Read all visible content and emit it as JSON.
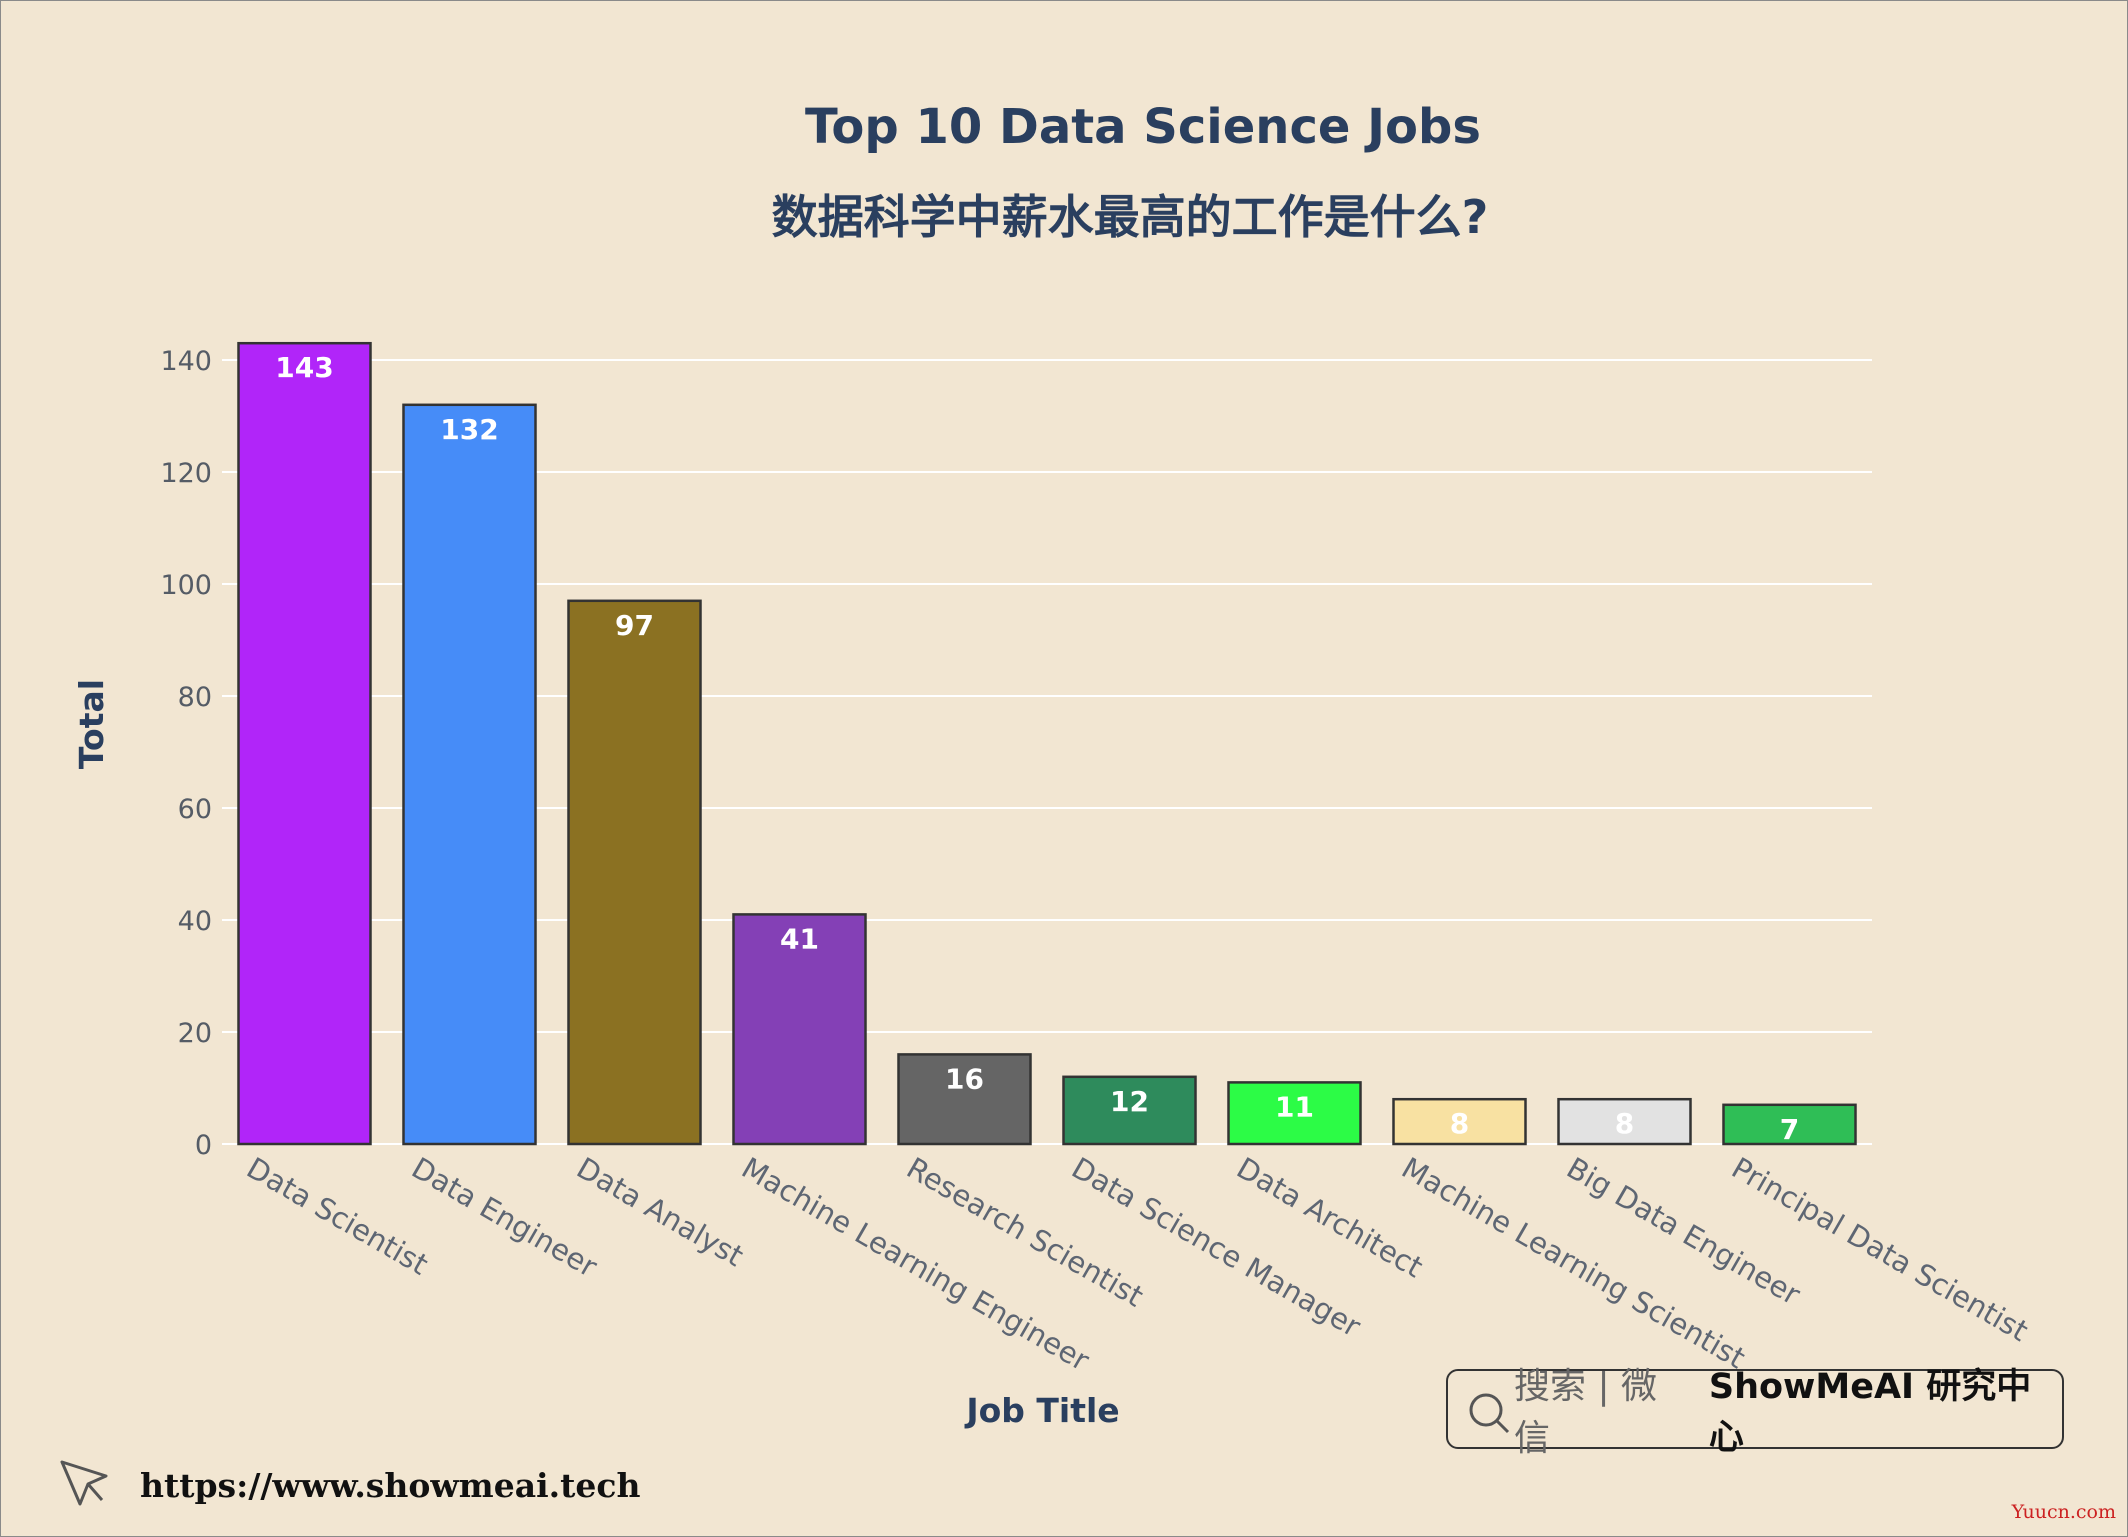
{
  "chart_data": {
    "type": "bar",
    "title": "Top 10 Data Science Jobs",
    "subtitle": "数据科学中薪水最高的工作是什么?",
    "xlabel": "Job Title",
    "ylabel": "Total",
    "ylim": [
      0,
      145
    ],
    "yticks": [
      0,
      20,
      40,
      60,
      80,
      100,
      120,
      140
    ],
    "grid": true,
    "categories": [
      "Data Scientist",
      "Data Engineer",
      "Data Analyst",
      "Machine Learning Engineer",
      "Research Scientist",
      "Data Science Manager",
      "Data Architect",
      "Machine Learning Scientist",
      "Big Data Engineer",
      "Principal Data Scientist"
    ],
    "values": [
      143,
      132,
      97,
      41,
      16,
      12,
      11,
      8,
      8,
      7
    ],
    "colors": [
      "#b125f9",
      "#468cf8",
      "#8b7122",
      "#8440b6",
      "#656565",
      "#2e8b5c",
      "#2cfc46",
      "#f8e1a2",
      "#e2e2e2",
      "#2fbe56"
    ],
    "label_colors": [
      "#ffffff",
      "#ffffff",
      "#ffffff",
      "#ffffff",
      "#ffffff",
      "#ffffff",
      "#ffffff",
      "#ffffff",
      "#ffffff",
      "#ffffff"
    ]
  },
  "branding": {
    "search_label": "搜索 | 微信",
    "brand_label": "ShowMeAI 研究中心",
    "url": "https://www.showmeai.tech",
    "watermark": "Yuucn.com"
  },
  "icons": {
    "search": "search-icon",
    "cursor": "cursor-icon"
  }
}
